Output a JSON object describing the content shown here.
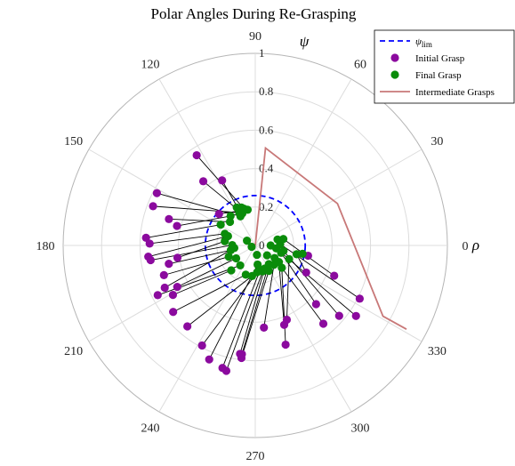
{
  "chart_data": {
    "type": "scatter",
    "projection": "polar",
    "title": "Polar Angles During Re-Grasping",
    "radial_axis_symbol": "ψ",
    "angular_axis_symbol": "ρ",
    "rlim": [
      0,
      1
    ],
    "radial_ticks": [
      "0",
      "0.2",
      "0.4",
      "0.6",
      "0.8",
      "1"
    ],
    "angular_ticks": [
      "0",
      "30",
      "60",
      "90",
      "120",
      "150",
      "180",
      "210",
      "240",
      "270",
      "300",
      "330"
    ],
    "angular_unit": "degrees",
    "grid": true,
    "legend_position": "top-right",
    "legend": [
      {
        "label": "ψlim",
        "label_main": "ψ",
        "label_sub": "lim",
        "style": "dashed-line",
        "color": "#0000ff"
      },
      {
        "label": "Initial Grasp",
        "style": "marker",
        "color": "#8b0a9e"
      },
      {
        "label": "Final Grasp",
        "style": "marker",
        "color": "#0a8c0a"
      },
      {
        "label": "Intermediate Grasps",
        "style": "line",
        "color": "#c87878"
      }
    ],
    "psi_lim": 0.26,
    "pairs": [
      {
        "initial": [
          123,
          0.56
        ],
        "final": [
          107,
          0.2
        ]
      },
      {
        "initial": [
          129,
          0.43
        ],
        "final": [
          112,
          0.18
        ]
      },
      {
        "initial": [
          117,
          0.38
        ],
        "final": [
          114,
          0.18
        ]
      },
      {
        "initial": [
          139,
          0.25
        ],
        "final": [
          102,
          0.19
        ]
      },
      {
        "initial": [
          152,
          0.58
        ],
        "final": [
          117,
          0.17
        ]
      },
      {
        "initial": [
          159,
          0.57
        ],
        "final": [
          116,
          0.19
        ]
      },
      {
        "initial": [
          163,
          0.47
        ],
        "final": [
          137,
          0.18
        ]
      },
      {
        "initial": [
          166,
          0.42
        ],
        "final": [
          130,
          0.2
        ]
      },
      {
        "initial": [
          176,
          0.57
        ],
        "final": [
          149,
          0.21
        ]
      },
      {
        "initial": [
          179,
          0.55
        ],
        "final": [
          159,
          0.17
        ]
      },
      {
        "initial": [
          186,
          0.56
        ],
        "final": [
          161,
          0.15
        ]
      },
      {
        "initial": [
          188,
          0.55
        ],
        "final": [
          179,
          0.12
        ]
      },
      {
        "initial": [
          189,
          0.41
        ],
        "final": [
          172,
          0.16
        ]
      },
      {
        "initial": [
          192,
          0.46
        ],
        "final": [
          191,
          0.13
        ]
      },
      {
        "initial": [
          198,
          0.5
        ],
        "final": [
          203,
          0.15
        ]
      },
      {
        "initial": [
          205,
          0.52
        ],
        "final": [
          187,
          0.11
        ]
      },
      {
        "initial": [
          207,
          0.57
        ],
        "final": [
          233,
          0.13
        ]
      },
      {
        "initial": [
          208,
          0.46
        ],
        "final": [
          214,
          0.12
        ]
      },
      {
        "initial": [
          211,
          0.5
        ],
        "final": [
          226,
          0.18
        ]
      },
      {
        "initial": [
          219,
          0.55
        ],
        "final": [
          252,
          0.16
        ]
      },
      {
        "initial": [
          230,
          0.55
        ],
        "final": [
          264,
          0.16
        ]
      },
      {
        "initial": [
          242,
          0.59
        ],
        "final": [
          274,
          0.14
        ]
      },
      {
        "initial": [
          248,
          0.64
        ],
        "final": [
          277,
          0.1
        ]
      },
      {
        "initial": [
          255,
          0.66
        ],
        "final": [
          281,
          0.13
        ]
      },
      {
        "initial": [
          257,
          0.67
        ],
        "final": [
          286,
          0.14
        ]
      },
      {
        "initial": [
          262,
          0.57
        ],
        "final": [
          292,
          0.13
        ]
      },
      {
        "initial": [
          263,
          0.59
        ],
        "final": [
          298,
          0.15
        ]
      },
      {
        "initial": [
          263,
          0.57
        ],
        "final": [
          306,
          0.12
        ]
      },
      {
        "initial": [
          276,
          0.43
        ],
        "final": [
          314,
          0.14
        ]
      },
      {
        "initial": [
          287,
          0.54
        ],
        "final": [
          320,
          0.18
        ]
      },
      {
        "initial": [
          290,
          0.44
        ],
        "final": [
          325,
          0.15
        ]
      },
      {
        "initial": [
          293,
          0.42
        ],
        "final": [
          338,
          0.19
        ]
      },
      {
        "initial": [
          311,
          0.54
        ],
        "final": [
          327,
          0.12
        ]
      },
      {
        "initial": [
          316,
          0.44
        ],
        "final": [
          344,
          0.14
        ]
      },
      {
        "initial": [
          320,
          0.57
        ],
        "final": [
          349,
          0.15
        ]
      },
      {
        "initial": [
          325,
          0.64
        ],
        "final": [
          352,
          0.11
        ]
      },
      {
        "initial": [
          333,
          0.61
        ],
        "final": [
          3,
          0.13
        ]
      },
      {
        "initial": [
          339,
          0.44
        ],
        "final": [
          13,
          0.15
        ]
      },
      {
        "initial": [
          349,
          0.28
        ],
        "final": [
          350,
          0.25
        ]
      },
      {
        "initial": [
          332,
          0.3
        ],
        "final": [
          348,
          0.22
        ]
      }
    ],
    "extra_final": [
      [
        116,
        0.22
      ],
      [
        110,
        0.21
      ],
      [
        150,
        0.05
      ],
      [
        200,
        0.02
      ],
      [
        280,
        0.05
      ],
      [
        320,
        0.08
      ],
      [
        360,
        0.08
      ],
      [
        15,
        0.12
      ]
    ],
    "intermediate_path": [
      [
        270,
        0.0
      ],
      [
        84,
        0.51
      ],
      [
        27,
        0.48
      ],
      [
        331,
        0.76
      ],
      [
        331,
        0.9
      ]
    ]
  }
}
